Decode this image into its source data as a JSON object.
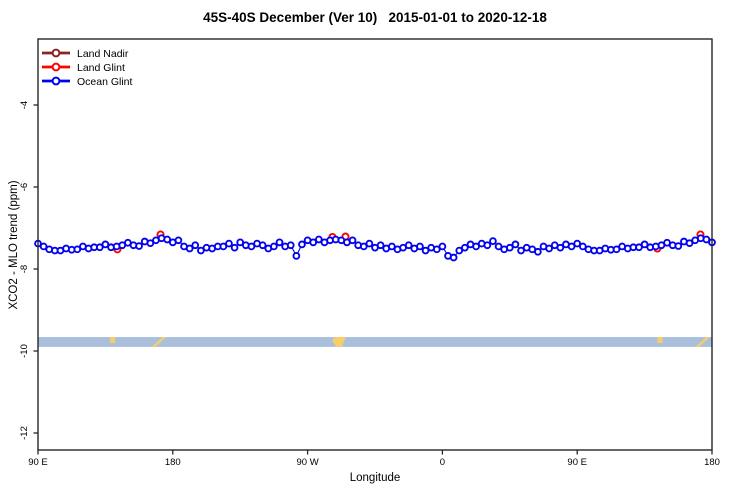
{
  "title": "45S-40S December (Ver 10)   2015-01-01 to 2020-12-18",
  "axes": {
    "xlabel": "Longitude",
    "ylabel": "XCO2 - MLO trend (ppm)",
    "xtick_labels": [
      "90 E",
      "180",
      "90 W",
      "0",
      "90 E",
      "180"
    ],
    "ytick_labels": [
      "-4",
      "-6",
      "-8",
      "-10",
      "-12"
    ]
  },
  "legend": {
    "items": [
      {
        "label": "Land Nadir",
        "color": "#8B2323"
      },
      {
        "label": "Land Glint",
        "color": "#FF0000"
      },
      {
        "label": "Ocean Glint",
        "color": "#0202EE"
      }
    ]
  },
  "colors": {
    "frame": "#262626",
    "tick_text": "#000000",
    "band_ocean": "#AABFDB",
    "band_land": "#F6CF6A"
  },
  "chart_data": {
    "type": "line",
    "title": "45S-40S December (Ver 10)   2015-01-01 to 2020-12-18",
    "xlabel": "Longitude",
    "ylabel": "XCO2 - MLO trend (ppm)",
    "x_axis": {
      "tick_labels": [
        "90 E",
        "180",
        "90 W",
        "0",
        "90 E",
        "180"
      ],
      "tick_deg": [
        0,
        90,
        180,
        270,
        360,
        450
      ],
      "xlim_deg": [
        0,
        450
      ],
      "note": "longitude axis starts at 90E and extends 450 deg eastward (90E wraps and repeats)"
    },
    "ylim": [
      -12.4,
      -2.4
    ],
    "yticks": [
      -4,
      -6,
      -8,
      -10,
      -12
    ],
    "grid": false,
    "legend_position": "top-left",
    "series": [
      {
        "name": "Ocean Glint",
        "color": "#0202EE",
        "marker": "open-circle",
        "x_start_deg": 0,
        "x_step_deg": 3.75,
        "values": [
          -7.38,
          -7.45,
          -7.52,
          -7.55,
          -7.55,
          -7.5,
          -7.53,
          -7.52,
          -7.45,
          -7.5,
          -7.47,
          -7.47,
          -7.4,
          -7.47,
          -7.45,
          -7.42,
          -7.36,
          -7.42,
          -7.44,
          -7.33,
          -7.37,
          -7.3,
          -7.25,
          -7.28,
          -7.35,
          -7.3,
          -7.45,
          -7.5,
          -7.42,
          -7.55,
          -7.48,
          -7.5,
          -7.45,
          -7.45,
          -7.38,
          -7.48,
          -7.35,
          -7.42,
          -7.45,
          -7.38,
          -7.42,
          -7.5,
          -7.45,
          -7.35,
          -7.45,
          -7.42,
          -7.68,
          -7.4,
          -7.3,
          -7.35,
          -7.28,
          -7.35,
          -7.3,
          -7.28,
          -7.3,
          -7.35,
          -7.3,
          -7.42,
          -7.45,
          -7.38,
          -7.48,
          -7.42,
          -7.5,
          -7.45,
          -7.52,
          -7.48,
          -7.42,
          -7.5,
          -7.45,
          -7.55,
          -7.48,
          -7.52,
          -7.45,
          -7.68,
          -7.72,
          -7.55,
          -7.48,
          -7.4,
          -7.45,
          -7.38,
          -7.42,
          -7.32,
          -7.45,
          -7.52,
          -7.48,
          -7.4,
          -7.55,
          -7.48,
          -7.52,
          -7.58,
          -7.45,
          -7.5,
          -7.42,
          -7.48,
          -7.4,
          -7.45,
          -7.38,
          -7.45,
          -7.52,
          -7.55,
          -7.55,
          -7.5,
          -7.53,
          -7.52,
          -7.45,
          -7.5,
          -7.47,
          -7.47,
          -7.4,
          -7.47,
          -7.45,
          -7.42,
          -7.36,
          -7.42,
          -7.44,
          -7.33,
          -7.37,
          -7.3,
          -7.25,
          -7.28,
          -7.35
        ]
      },
      {
        "name": "Land Glint",
        "color": "#FF0000",
        "marker": "open-circle",
        "points": [
          [
            53.0,
            -7.52
          ],
          [
            81.8,
            -7.16
          ],
          [
            196.6,
            -7.22
          ],
          [
            205.3,
            -7.21
          ],
          [
            413.5,
            -7.5
          ],
          [
            442.3,
            -7.16
          ]
        ]
      },
      {
        "name": "Land Nadir",
        "color": "#8B2323",
        "marker": "open-circle",
        "points": []
      }
    ],
    "map_band": {
      "description": "ocean/land strip for 45S-40S latitude band",
      "ppm_top": -9.66,
      "ppm_bottom": -9.9,
      "ocean_color": "#AABFDB",
      "land_color": "#F6CF6A",
      "land_segments": [
        {
          "from_deg": 48.0,
          "to_deg": 51.5,
          "shape": "dot"
        },
        {
          "from_deg": 76.0,
          "to_deg": 85.5,
          "shape": "slant"
        },
        {
          "from_deg": 196.5,
          "to_deg": 205.5,
          "shape": "blob"
        },
        {
          "from_deg": 413.5,
          "to_deg": 417.0,
          "shape": "dot"
        },
        {
          "from_deg": 439.0,
          "to_deg": 448.5,
          "shape": "slant"
        }
      ]
    }
  }
}
